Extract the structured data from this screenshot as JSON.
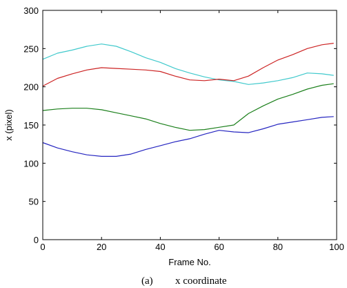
{
  "caption": {
    "tag": "(a)",
    "text": "x coordinate"
  },
  "chart_data": {
    "type": "line",
    "title": "",
    "xlabel": "Frame No.",
    "ylabel": "x (pixel)",
    "xlim": [
      0,
      100
    ],
    "ylim": [
      0,
      300
    ],
    "xticks": [
      0,
      20,
      40,
      60,
      80,
      100
    ],
    "yticks": [
      0,
      50,
      100,
      150,
      200,
      250,
      300
    ],
    "grid": false,
    "legend": "none",
    "x": [
      0,
      5,
      10,
      15,
      20,
      25,
      30,
      35,
      40,
      45,
      50,
      55,
      60,
      65,
      70,
      75,
      80,
      85,
      90,
      95,
      99
    ],
    "series": [
      {
        "color": "#3fc9cc",
        "values": [
          236,
          244,
          248,
          253,
          256,
          253,
          246,
          238,
          232,
          224,
          218,
          213,
          209,
          207,
          203,
          205,
          208,
          212,
          218,
          217,
          215
        ]
      },
      {
        "color": "#cc2222",
        "values": [
          201,
          211,
          217,
          222,
          225,
          224,
          223,
          222,
          220,
          214,
          209,
          208,
          210,
          208,
          214,
          225,
          235,
          242,
          250,
          255,
          257
        ]
      },
      {
        "color": "#1a7f1a",
        "values": [
          169,
          171,
          172,
          172,
          170,
          166,
          162,
          158,
          152,
          147,
          143,
          144,
          147,
          150,
          165,
          175,
          184,
          190,
          197,
          202,
          204
        ]
      },
      {
        "color": "#2424c0",
        "values": [
          127,
          120,
          115,
          111,
          109,
          109,
          112,
          118,
          123,
          128,
          132,
          138,
          143,
          141,
          140,
          145,
          151,
          154,
          157,
          160,
          161
        ]
      }
    ]
  }
}
